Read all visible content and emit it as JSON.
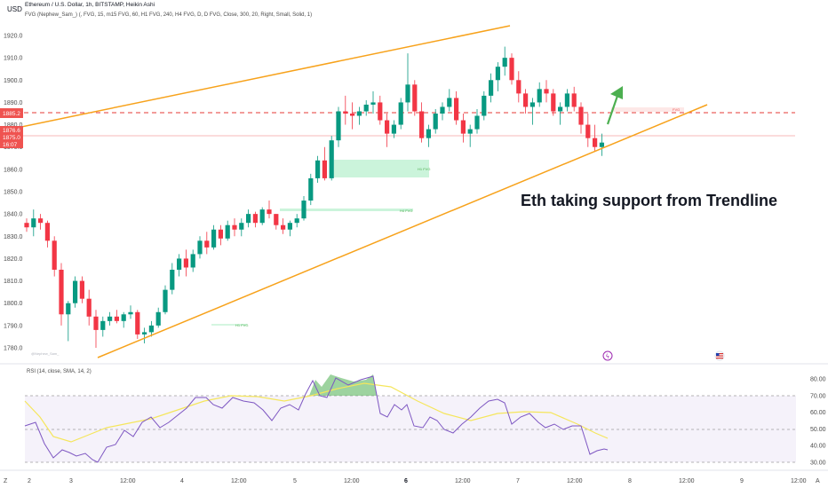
{
  "header": {
    "currency": "USD",
    "title": "Ethereum / U.S. Dollar, 1h, BITSTAMP, Heikin Ashi",
    "indicator": "FVG (Nephew_Sam_) (, FVG, 15, m15 FVG, 60, H1 FVG, 240, H4 FVG, D, D FVG, Close, 300, 20, Right, Small, Solid, 1)"
  },
  "annotation": "Eth taking support from Trendline",
  "watermark": "@Nephew_Sam_",
  "price_axis": {
    "ticks": [
      "1920.0",
      "1910.0",
      "1900.0",
      "1890.0",
      "1880.0",
      "1870.0",
      "1860.0",
      "1850.0",
      "1840.0",
      "1830.0",
      "1820.0",
      "1810.0",
      "1800.0",
      "1790.0",
      "1780.0"
    ],
    "tags": [
      {
        "text": "1885.2",
        "color": "#ef5350"
      },
      {
        "text": "1876.6",
        "color": "#ef5350"
      },
      {
        "text": "1875.0",
        "color": "#ef5350"
      },
      {
        "text": "16:07",
        "color": "#ef5350"
      }
    ]
  },
  "fvg_labels": [
    "H1 FVG",
    "H4 FVG",
    "H1 FVG",
    "FVG"
  ],
  "rsi": {
    "title": "RSI (14, close, SMA, 14, 2)",
    "ticks": [
      "80.00",
      "70.00",
      "60.00",
      "50.00",
      "40.00",
      "30.00"
    ],
    "levels": {
      "upper": 70,
      "middle": 50,
      "lower": 30
    }
  },
  "time_axis": {
    "labels": [
      "2",
      "3",
      "12:00",
      "4",
      "12:00",
      "5",
      "12:00",
      "6",
      "12:00",
      "7",
      "12:00",
      "8",
      "12:00",
      "9",
      "12:00"
    ],
    "bold": [
      "6"
    ]
  },
  "corner_left": "Z",
  "corner_right": "A",
  "colors": {
    "up": "#089981",
    "down": "#f23645",
    "trend": "#f7a21b",
    "rsi": "#7e57c2",
    "rsi_ma": "#f5e65c",
    "arrow": "#4caf50",
    "fvg": "#a5e8c0"
  },
  "chart_data": {
    "type": "candlestick",
    "price_range": [
      1776,
      1925
    ],
    "candles": [
      [
        1836,
        1838,
        1832,
        1834
      ],
      [
        1834,
        1842,
        1830,
        1838
      ],
      [
        1838,
        1840,
        1833,
        1836
      ],
      [
        1836,
        1837,
        1825,
        1828
      ],
      [
        1828,
        1830,
        1812,
        1815
      ],
      [
        1815,
        1818,
        1790,
        1795
      ],
      [
        1795,
        1801,
        1783,
        1800
      ],
      [
        1800,
        1812,
        1798,
        1810
      ],
      [
        1810,
        1812,
        1800,
        1802
      ],
      [
        1802,
        1806,
        1790,
        1794
      ],
      [
        1794,
        1797,
        1780,
        1788
      ],
      [
        1788,
        1794,
        1785,
        1792
      ],
      [
        1792,
        1796,
        1790,
        1794
      ],
      [
        1794,
        1797,
        1791,
        1792
      ],
      [
        1792,
        1796,
        1789,
        1795
      ],
      [
        1795,
        1799,
        1793,
        1796
      ],
      [
        1796,
        1797,
        1784,
        1786
      ],
      [
        1786,
        1789,
        1782,
        1787
      ],
      [
        1787,
        1792,
        1785,
        1790
      ],
      [
        1790,
        1798,
        1789,
        1796
      ],
      [
        1796,
        1808,
        1795,
        1806
      ],
      [
        1806,
        1818,
        1804,
        1815
      ],
      [
        1815,
        1822,
        1812,
        1820
      ],
      [
        1820,
        1824,
        1812,
        1816
      ],
      [
        1816,
        1824,
        1814,
        1822
      ],
      [
        1822,
        1830,
        1820,
        1828
      ],
      [
        1828,
        1832,
        1822,
        1825
      ],
      [
        1825,
        1835,
        1824,
        1833
      ],
      [
        1833,
        1835,
        1826,
        1829
      ],
      [
        1829,
        1837,
        1828,
        1835
      ],
      [
        1835,
        1838,
        1830,
        1833
      ],
      [
        1833,
        1838,
        1830,
        1836
      ],
      [
        1836,
        1842,
        1834,
        1840
      ],
      [
        1840,
        1841,
        1834,
        1836
      ],
      [
        1836,
        1843,
        1835,
        1842
      ],
      [
        1842,
        1846,
        1838,
        1840
      ],
      [
        1840,
        1840,
        1833,
        1835
      ],
      [
        1835,
        1838,
        1831,
        1833
      ],
      [
        1833,
        1837,
        1830,
        1836
      ],
      [
        1836,
        1840,
        1834,
        1838
      ],
      [
        1838,
        1848,
        1837,
        1846
      ],
      [
        1846,
        1858,
        1844,
        1856
      ],
      [
        1856,
        1866,
        1854,
        1864
      ],
      [
        1864,
        1870,
        1855,
        1856
      ],
      [
        1856,
        1875,
        1855,
        1873
      ],
      [
        1873,
        1888,
        1870,
        1886
      ],
      [
        1886,
        1893,
        1880,
        1885
      ],
      [
        1885,
        1890,
        1878,
        1884
      ],
      [
        1884,
        1888,
        1880,
        1886
      ],
      [
        1886,
        1891,
        1884,
        1889
      ],
      [
        1889,
        1895,
        1885,
        1890
      ],
      [
        1890,
        1893,
        1880,
        1882
      ],
      [
        1882,
        1885,
        1870,
        1876
      ],
      [
        1876,
        1882,
        1874,
        1880
      ],
      [
        1880,
        1892,
        1878,
        1890
      ],
      [
        1890,
        1912,
        1886,
        1898
      ],
      [
        1898,
        1900,
        1884,
        1886
      ],
      [
        1886,
        1890,
        1872,
        1874
      ],
      [
        1874,
        1880,
        1870,
        1878
      ],
      [
        1878,
        1887,
        1876,
        1885
      ],
      [
        1885,
        1890,
        1882,
        1888
      ],
      [
        1888,
        1896,
        1886,
        1892
      ],
      [
        1892,
        1895,
        1880,
        1882
      ],
      [
        1882,
        1885,
        1872,
        1876
      ],
      [
        1876,
        1880,
        1870,
        1878
      ],
      [
        1878,
        1887,
        1876,
        1884
      ],
      [
        1884,
        1895,
        1882,
        1893
      ],
      [
        1893,
        1903,
        1890,
        1900
      ],
      [
        1900,
        1908,
        1895,
        1906
      ],
      [
        1906,
        1915,
        1902,
        1910
      ],
      [
        1910,
        1912,
        1898,
        1900
      ],
      [
        1900,
        1904,
        1890,
        1894
      ],
      [
        1894,
        1896,
        1885,
        1888
      ],
      [
        1888,
        1892,
        1880,
        1890
      ],
      [
        1890,
        1899,
        1888,
        1896
      ],
      [
        1896,
        1900,
        1890,
        1894
      ],
      [
        1894,
        1896,
        1884,
        1886
      ],
      [
        1886,
        1890,
        1880,
        1888
      ],
      [
        1888,
        1896,
        1886,
        1894
      ],
      [
        1894,
        1897,
        1886,
        1888
      ],
      [
        1888,
        1890,
        1876,
        1880
      ],
      [
        1880,
        1885,
        1870,
        1874
      ],
      [
        1874,
        1880,
        1868,
        1870
      ],
      [
        1870,
        1876,
        1866,
        1872
      ]
    ],
    "trendlines": [
      {
        "name": "upper",
        "from": [
          0,
          1877
        ],
        "to": [
          77,
          1925
        ]
      },
      {
        "name": "lower",
        "from": [
          11,
          1780
        ],
        "to": [
          103,
          1888
        ]
      }
    ],
    "resistance_line": 1885.2,
    "last_price": 1876.6
  }
}
